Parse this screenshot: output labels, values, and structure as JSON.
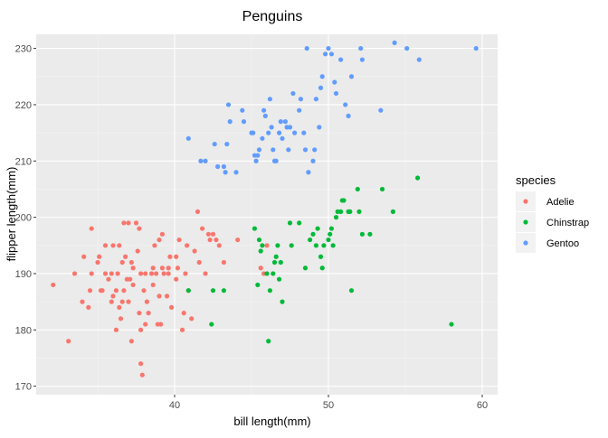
{
  "chart_data": {
    "type": "scatter",
    "title": "Penguins",
    "xlabel": "bill length(mm)",
    "ylabel": "flipper length(mm)",
    "xlim": [
      31.0,
      61.0
    ],
    "ylim": [
      168.5,
      232.5
    ],
    "x_ticks": [
      40,
      50,
      60
    ],
    "y_ticks": [
      170,
      180,
      190,
      200,
      210,
      220,
      230
    ],
    "grid": true,
    "legend": {
      "title": "species",
      "position": "right"
    },
    "series": [
      {
        "name": "Adelie",
        "color": "#F8766D",
        "points": [
          [
            32.1,
            188
          ],
          [
            33.1,
            178
          ],
          [
            33.5,
            190
          ],
          [
            34.0,
            185
          ],
          [
            34.1,
            193
          ],
          [
            34.4,
            184
          ],
          [
            34.5,
            187
          ],
          [
            34.6,
            190
          ],
          [
            34.6,
            198
          ],
          [
            35.0,
            192
          ],
          [
            35.1,
            193
          ],
          [
            35.2,
            187
          ],
          [
            35.3,
            187
          ],
          [
            35.5,
            190
          ],
          [
            35.5,
            195
          ],
          [
            35.7,
            189
          ],
          [
            35.9,
            190
          ],
          [
            35.9,
            185
          ],
          [
            36.0,
            186
          ],
          [
            36.0,
            195
          ],
          [
            36.2,
            187
          ],
          [
            36.2,
            180
          ],
          [
            36.3,
            190
          ],
          [
            36.4,
            184
          ],
          [
            36.4,
            195
          ],
          [
            36.5,
            182
          ],
          [
            36.6,
            185
          ],
          [
            36.6,
            192
          ],
          [
            36.7,
            187
          ],
          [
            36.7,
            199
          ],
          [
            36.8,
            193
          ],
          [
            36.9,
            189
          ],
          [
            37.0,
            185
          ],
          [
            37.0,
            199
          ],
          [
            37.2,
            178
          ],
          [
            37.2,
            192
          ],
          [
            37.3,
            188
          ],
          [
            37.3,
            191
          ],
          [
            37.5,
            199
          ],
          [
            37.6,
            194
          ],
          [
            37.7,
            198
          ],
          [
            37.7,
            183
          ],
          [
            37.8,
            180
          ],
          [
            37.8,
            174
          ],
          [
            37.8,
            190
          ],
          [
            37.9,
            172
          ],
          [
            38.0,
            187
          ],
          [
            38.1,
            181
          ],
          [
            38.1,
            190
          ],
          [
            38.2,
            185
          ],
          [
            38.5,
            190
          ],
          [
            38.6,
            188
          ],
          [
            38.6,
            191
          ],
          [
            38.7,
            195
          ],
          [
            38.8,
            190
          ],
          [
            38.9,
            181
          ],
          [
            39.0,
            186
          ],
          [
            39.1,
            181
          ],
          [
            39.2,
            191
          ],
          [
            39.2,
            197
          ],
          [
            39.3,
            190
          ],
          [
            39.5,
            186
          ],
          [
            39.6,
            190
          ],
          [
            39.7,
            193
          ],
          [
            39.8,
            184
          ],
          [
            40.1,
            193
          ],
          [
            40.2,
            191
          ],
          [
            40.3,
            196
          ],
          [
            40.5,
            180
          ],
          [
            40.6,
            183
          ],
          [
            40.7,
            190
          ],
          [
            40.8,
            195
          ],
          [
            40.9,
            187
          ],
          [
            41.1,
            182
          ],
          [
            41.3,
            194
          ],
          [
            41.5,
            201
          ],
          [
            41.6,
            192
          ],
          [
            41.8,
            198
          ],
          [
            42.0,
            190
          ],
          [
            42.2,
            197
          ],
          [
            42.3,
            196
          ],
          [
            42.5,
            197
          ],
          [
            42.7,
            196
          ],
          [
            42.9,
            195
          ],
          [
            43.2,
            192
          ],
          [
            44.1,
            196
          ],
          [
            45.6,
            191
          ],
          [
            45.8,
            190
          ],
          [
            46.0,
            195
          ],
          [
            39.0,
            196
          ],
          [
            38.3,
            183
          ],
          [
            40.1,
            189
          ],
          [
            37.1,
            189
          ],
          [
            39.6,
            191
          ]
        ]
      },
      {
        "name": "Chinstrap",
        "color": "#00BA38",
        "points": [
          [
            40.9,
            187
          ],
          [
            42.4,
            181
          ],
          [
            42.5,
            187
          ],
          [
            43.2,
            187
          ],
          [
            45.2,
            198
          ],
          [
            45.4,
            188
          ],
          [
            45.5,
            196
          ],
          [
            45.6,
            194
          ],
          [
            45.7,
            195
          ],
          [
            46.0,
            190
          ],
          [
            46.1,
            178
          ],
          [
            46.2,
            187
          ],
          [
            46.4,
            190
          ],
          [
            46.5,
            192
          ],
          [
            46.6,
            193
          ],
          [
            46.7,
            195
          ],
          [
            46.8,
            189
          ],
          [
            46.9,
            192
          ],
          [
            47.0,
            185
          ],
          [
            47.5,
            199
          ],
          [
            48.1,
            199
          ],
          [
            48.5,
            191
          ],
          [
            48.8,
            196
          ],
          [
            49.0,
            197
          ],
          [
            49.2,
            195
          ],
          [
            49.5,
            193
          ],
          [
            49.7,
            195
          ],
          [
            50.0,
            196
          ],
          [
            50.1,
            197
          ],
          [
            50.2,
            198
          ],
          [
            50.5,
            200
          ],
          [
            50.6,
            201
          ],
          [
            50.9,
            203
          ],
          [
            51.3,
            201
          ],
          [
            51.4,
            201
          ],
          [
            51.5,
            187
          ],
          [
            51.9,
            205
          ],
          [
            52.0,
            201
          ],
          [
            52.2,
            197
          ],
          [
            52.7,
            197
          ],
          [
            53.5,
            205
          ],
          [
            54.2,
            201
          ],
          [
            55.8,
            207
          ],
          [
            58.0,
            181
          ],
          [
            49.6,
            191
          ],
          [
            50.8,
            201
          ],
          [
            49.3,
            198
          ],
          [
            51.0,
            203
          ],
          [
            50.3,
            195
          ],
          [
            47.6,
            195
          ]
        ]
      },
      {
        "name": "Gentoo",
        "color": "#619CFF",
        "points": [
          [
            40.9,
            214
          ],
          [
            41.7,
            210
          ],
          [
            42.0,
            210
          ],
          [
            42.6,
            213
          ],
          [
            42.8,
            209
          ],
          [
            43.2,
            209
          ],
          [
            43.3,
            208
          ],
          [
            43.4,
            213
          ],
          [
            43.5,
            220
          ],
          [
            43.6,
            217
          ],
          [
            44.0,
            208
          ],
          [
            44.4,
            219
          ],
          [
            44.5,
            217
          ],
          [
            45.0,
            215
          ],
          [
            45.1,
            215
          ],
          [
            45.2,
            211
          ],
          [
            45.3,
            210
          ],
          [
            45.4,
            211
          ],
          [
            45.5,
            212
          ],
          [
            45.7,
            214
          ],
          [
            45.8,
            219
          ],
          [
            46.1,
            215
          ],
          [
            46.2,
            221
          ],
          [
            46.4,
            212
          ],
          [
            46.5,
            210
          ],
          [
            46.6,
            210
          ],
          [
            46.8,
            215
          ],
          [
            47.0,
            214
          ],
          [
            47.2,
            217
          ],
          [
            47.3,
            216
          ],
          [
            47.4,
            212
          ],
          [
            47.5,
            216
          ],
          [
            47.7,
            222
          ],
          [
            48.1,
            219
          ],
          [
            48.2,
            221
          ],
          [
            48.4,
            215
          ],
          [
            48.5,
            212
          ],
          [
            48.6,
            230
          ],
          [
            48.7,
            208
          ],
          [
            49.0,
            210
          ],
          [
            49.1,
            212
          ],
          [
            49.2,
            221
          ],
          [
            49.4,
            216
          ],
          [
            49.5,
            223
          ],
          [
            49.6,
            225
          ],
          [
            49.8,
            229
          ],
          [
            50.0,
            230
          ],
          [
            50.2,
            229
          ],
          [
            50.4,
            224
          ],
          [
            50.5,
            222
          ],
          [
            50.8,
            228
          ],
          [
            51.1,
            220
          ],
          [
            51.3,
            218
          ],
          [
            51.5,
            225
          ],
          [
            52.1,
            230
          ],
          [
            52.2,
            228
          ],
          [
            53.4,
            219
          ],
          [
            54.3,
            231
          ],
          [
            55.1,
            230
          ],
          [
            55.9,
            228
          ],
          [
            59.6,
            230
          ],
          [
            46.9,
            217
          ],
          [
            47.8,
            215
          ],
          [
            46.3,
            216
          ],
          [
            45.9,
            218
          ]
        ]
      }
    ]
  }
}
